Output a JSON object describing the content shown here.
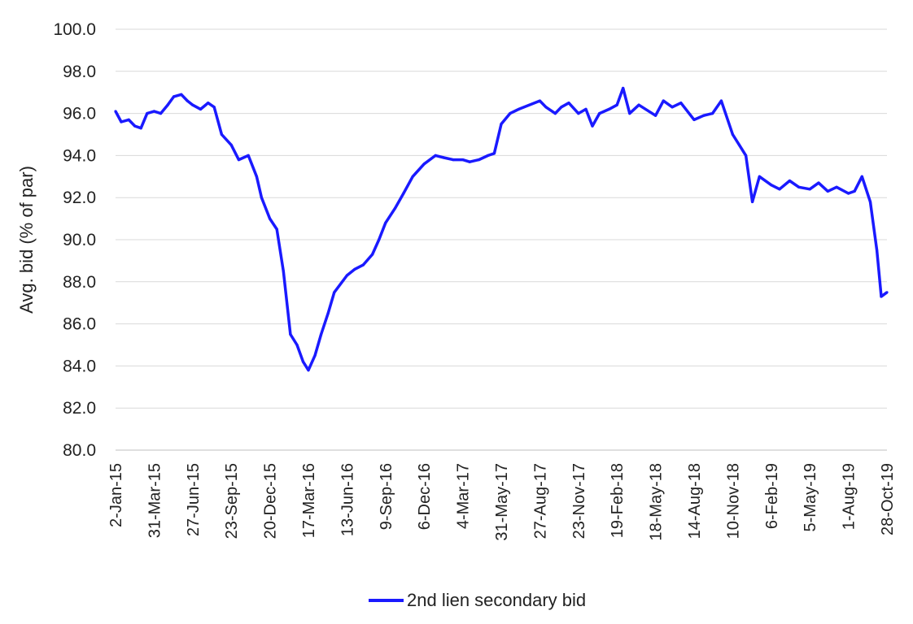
{
  "chart_data": {
    "type": "line",
    "xlabel": "",
    "ylabel": "Avg. bid (% of par)",
    "ylim": [
      80.0,
      100.0
    ],
    "y_ticks": [
      "80.0",
      "82.0",
      "84.0",
      "86.0",
      "88.0",
      "90.0",
      "92.0",
      "94.0",
      "96.0",
      "98.0",
      "100.0"
    ],
    "x_ticks": [
      "2-Jan-15",
      "31-Mar-15",
      "27-Jun-15",
      "23-Sep-15",
      "20-Dec-15",
      "17-Mar-16",
      "13-Jun-16",
      "9-Sep-16",
      "6-Dec-16",
      "4-Mar-17",
      "31-May-17",
      "27-Aug-17",
      "23-Nov-17",
      "19-Feb-18",
      "18-May-18",
      "14-Aug-18",
      "10-Nov-18",
      "6-Feb-19",
      "5-May-19",
      "1-Aug-19",
      "28-Oct-19"
    ],
    "grid": true,
    "legend_position": "bottom",
    "series": [
      {
        "name": "2nd lien secondary bid",
        "color": "#1a1aff",
        "x": [
          "2-Jan-15",
          "15-Jan-15",
          "1-Feb-15",
          "15-Feb-15",
          "1-Mar-15",
          "15-Mar-15",
          "31-Mar-15",
          "15-Apr-15",
          "1-May-15",
          "15-May-15",
          "1-Jun-15",
          "15-Jun-15",
          "27-Jun-15",
          "15-Jul-15",
          "1-Aug-15",
          "15-Aug-15",
          "1-Sep-15",
          "23-Sep-15",
          "10-Oct-15",
          "1-Nov-15",
          "20-Nov-15",
          "1-Dec-15",
          "20-Dec-15",
          "5-Jan-16",
          "20-Jan-16",
          "5-Feb-16",
          "20-Feb-16",
          "5-Mar-16",
          "17-Mar-16",
          "1-Apr-16",
          "15-Apr-16",
          "1-May-16",
          "15-May-16",
          "13-Jun-16",
          "1-Jul-16",
          "20-Jul-16",
          "10-Aug-16",
          "25-Aug-16",
          "9-Sep-16",
          "1-Oct-16",
          "20-Oct-16",
          "10-Nov-16",
          "6-Dec-16",
          "1-Jan-17",
          "20-Jan-17",
          "10-Feb-17",
          "4-Mar-17",
          "20-Mar-17",
          "10-Apr-17",
          "1-May-17",
          "15-May-17",
          "31-May-17",
          "20-Jun-17",
          "10-Jul-17",
          "27-Aug-17",
          "10-Sep-17",
          "1-Oct-17",
          "15-Oct-17",
          "1-Nov-17",
          "23-Nov-17",
          "10-Dec-17",
          "25-Dec-17",
          "10-Jan-18",
          "1-Feb-18",
          "19-Feb-18",
          "5-Mar-18",
          "20-Mar-18",
          "10-Apr-18",
          "18-May-18",
          "5-Jun-18",
          "25-Jun-18",
          "15-Jul-18",
          "14-Aug-18",
          "5-Sep-18",
          "25-Sep-18",
          "15-Oct-18",
          "10-Nov-18",
          "25-Nov-18",
          "10-Dec-18",
          "25-Dec-18",
          "10-Jan-19",
          "6-Feb-19",
          "25-Feb-19",
          "20-Mar-19",
          "10-Apr-19",
          "5-May-19",
          "25-May-19",
          "15-Jun-19",
          "5-Jul-19",
          "1-Aug-19",
          "15-Aug-19",
          "1-Sep-19",
          "20-Sep-19",
          "5-Oct-19",
          "15-Oct-19",
          "28-Oct-19"
        ],
        "values": [
          96.1,
          95.6,
          95.7,
          95.4,
          95.3,
          96.0,
          96.1,
          96.0,
          96.4,
          96.8,
          96.9,
          96.6,
          96.4,
          96.2,
          96.5,
          96.3,
          95.0,
          94.5,
          93.8,
          94.0,
          93.0,
          92.0,
          91.0,
          90.5,
          88.5,
          85.5,
          85.0,
          84.2,
          83.8,
          84.5,
          85.5,
          86.5,
          87.5,
          88.3,
          88.6,
          88.8,
          89.3,
          90.0,
          90.8,
          91.5,
          92.2,
          93.0,
          93.6,
          94.0,
          93.9,
          93.8,
          93.8,
          93.7,
          93.8,
          94.0,
          94.1,
          95.5,
          96.0,
          96.2,
          96.6,
          96.3,
          96.0,
          96.3,
          96.5,
          96.0,
          96.2,
          95.4,
          96.0,
          96.2,
          96.4,
          97.2,
          96.0,
          96.4,
          95.9,
          96.6,
          96.3,
          96.5,
          95.7,
          95.9,
          96.0,
          96.6,
          95.0,
          94.5,
          94.0,
          91.8,
          93.0,
          92.6,
          92.4,
          92.8,
          92.5,
          92.4,
          92.7,
          92.3,
          92.5,
          92.2,
          92.3,
          93.0,
          91.8,
          89.5,
          87.3,
          87.5
        ],
        "points_estimated": true
      }
    ]
  },
  "legend": {
    "label": "2nd lien secondary bid"
  }
}
